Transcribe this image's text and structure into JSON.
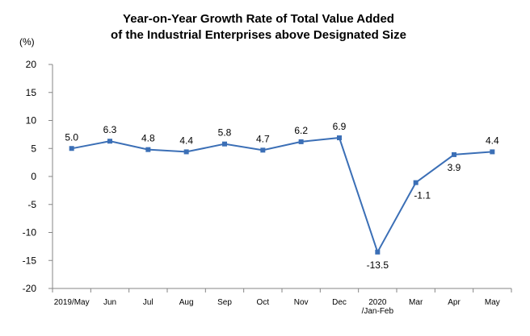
{
  "chart_data": {
    "type": "line",
    "title_lines": [
      "Year-on-Year Growth Rate of Total Value Added",
      "of the Industrial Enterprises above Designated Size"
    ],
    "unit": "(%)",
    "categories": [
      [
        "2019/May"
      ],
      [
        "Jun"
      ],
      [
        "Jul"
      ],
      [
        "Aug"
      ],
      [
        "Sep"
      ],
      [
        "Oct"
      ],
      [
        "Nov"
      ],
      [
        "Dec"
      ],
      [
        "2020",
        "/Jan-Feb"
      ],
      [
        "Mar"
      ],
      [
        "Apr"
      ],
      [
        "May"
      ]
    ],
    "series": [
      {
        "values": [
          5.0,
          6.3,
          4.8,
          4.4,
          5.8,
          4.7,
          6.2,
          6.9,
          -13.5,
          -1.1,
          3.9,
          4.4
        ],
        "labels": [
          "5.0",
          "6.3",
          "4.8",
          "4.4",
          "5.8",
          "4.7",
          "6.2",
          "6.9",
          "-13.5",
          "-1.1",
          "3.9",
          "4.4"
        ]
      }
    ],
    "ylim": [
      -20,
      20
    ],
    "yticks": [
      20,
      15,
      10,
      5,
      0,
      -5,
      -10,
      -15,
      -20
    ],
    "grid": false,
    "legend": "none",
    "colors": {
      "line": "#3B6FB6",
      "marker": "#3B6FB6",
      "axis": "#868686"
    }
  }
}
